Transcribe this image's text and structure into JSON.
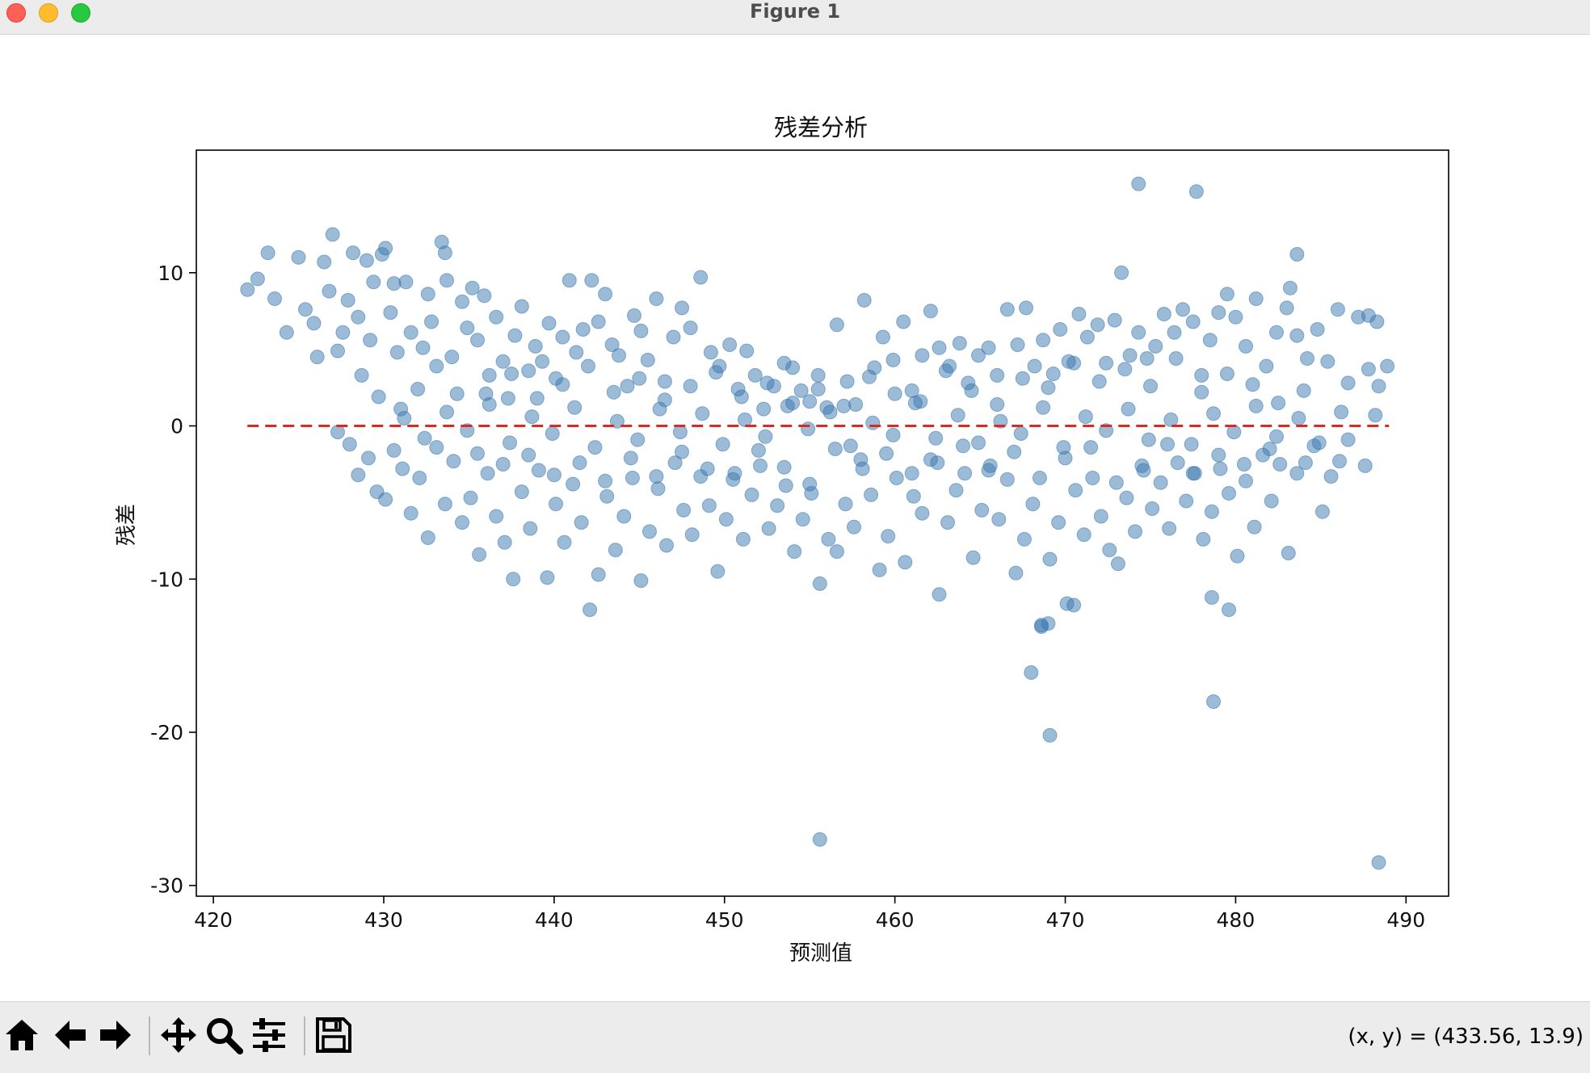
{
  "window": {
    "title": "Figure 1"
  },
  "toolbar": {
    "buttons": [
      {
        "name": "home-button",
        "icon": "home-icon"
      },
      {
        "name": "back-button",
        "icon": "arrow-left-icon"
      },
      {
        "name": "forward-button",
        "icon": "arrow-right-icon"
      },
      {
        "name": "pan-button",
        "icon": "move-icon"
      },
      {
        "name": "zoom-button",
        "icon": "magnifier-icon"
      },
      {
        "name": "configure-subplots-button",
        "icon": "sliders-icon"
      },
      {
        "name": "save-button",
        "icon": "floppy-disk-icon"
      }
    ],
    "coordinates": "(x, y) = (433.56, 13.9)"
  },
  "chart_data": {
    "type": "scatter",
    "title": "残差分析",
    "xlabel": "预测值",
    "ylabel": "残差",
    "xlim": [
      419,
      492.5
    ],
    "ylim": [
      -30.7,
      18
    ],
    "xticks": [
      420,
      430,
      440,
      450,
      460,
      470,
      480,
      490
    ],
    "yticks": [
      -30,
      -20,
      -10,
      0,
      10
    ],
    "grid": false,
    "colors": {
      "points": "#3a78b0",
      "reference_line": "#e0281e"
    },
    "reference_line": {
      "y": 0,
      "x": [
        422,
        489
      ],
      "style": "dashed"
    },
    "points": [
      [
        422,
        8.9
      ],
      [
        422.6,
        9.6
      ],
      [
        423.2,
        11.3
      ],
      [
        423.6,
        8.3
      ],
      [
        424.3,
        6.1
      ],
      [
        425,
        11
      ],
      [
        425.4,
        7.6
      ],
      [
        425.9,
        6.7
      ],
      [
        426.1,
        4.5
      ],
      [
        426.5,
        10.7
      ],
      [
        426.8,
        8.8
      ],
      [
        427,
        12.5
      ],
      [
        427.3,
        4.9
      ],
      [
        427.6,
        6.1
      ],
      [
        427.9,
        8.2
      ],
      [
        428.2,
        11.3
      ],
      [
        428.5,
        7.1
      ],
      [
        428.7,
        3.3
      ],
      [
        429,
        10.8
      ],
      [
        429.2,
        5.6
      ],
      [
        429.4,
        9.4
      ],
      [
        429.7,
        1.9
      ],
      [
        429.9,
        11.2
      ],
      [
        430.1,
        11.6
      ],
      [
        430.4,
        7.4
      ],
      [
        430.6,
        9.3
      ],
      [
        430.8,
        4.8
      ],
      [
        431,
        1.1
      ],
      [
        431.3,
        9.4
      ],
      [
        431.6,
        6.1
      ],
      [
        432,
        2.4
      ],
      [
        432.3,
        5.1
      ],
      [
        432.6,
        8.6
      ],
      [
        432.8,
        6.8
      ],
      [
        433.1,
        3.9
      ],
      [
        433.4,
        12
      ],
      [
        433.6,
        11.3
      ],
      [
        433.7,
        9.5
      ],
      [
        434,
        4.5
      ],
      [
        434.3,
        2.1
      ],
      [
        434.6,
        8.1
      ],
      [
        434.9,
        6.4
      ],
      [
        435.2,
        9
      ],
      [
        435.5,
        5.6
      ],
      [
        435.9,
        8.5
      ],
      [
        436.2,
        3.3
      ],
      [
        436.6,
        7.1
      ],
      [
        437,
        4.2
      ],
      [
        437.3,
        1.8
      ],
      [
        437.7,
        5.9
      ],
      [
        438.1,
        7.8
      ],
      [
        438.5,
        3.6
      ],
      [
        438.9,
        5.2
      ],
      [
        439.3,
        4.2
      ],
      [
        439.7,
        6.7
      ],
      [
        440.1,
        3.1
      ],
      [
        440.5,
        5.8
      ],
      [
        440.9,
        9.5
      ],
      [
        441.3,
        4.8
      ],
      [
        441.7,
        6.3
      ],
      [
        442.2,
        9.5
      ],
      [
        442.6,
        6.8
      ],
      [
        443,
        8.6
      ],
      [
        443.4,
        5.3
      ],
      [
        443.8,
        4.6
      ],
      [
        444.3,
        2.6
      ],
      [
        444.7,
        7.2
      ],
      [
        445.1,
        6.2
      ],
      [
        445.5,
        4.3
      ],
      [
        446,
        8.3
      ],
      [
        446.5,
        2.9
      ],
      [
        447,
        5.8
      ],
      [
        447.5,
        7.7
      ],
      [
        448,
        6.4
      ],
      [
        448.6,
        9.7
      ],
      [
        449.2,
        4.8
      ],
      [
        449.7,
        3.9
      ],
      [
        450.3,
        5.3
      ],
      [
        450.8,
        2.4
      ],
      [
        451.3,
        4.9
      ],
      [
        451.8,
        3.3
      ],
      [
        452.3,
        1.1
      ],
      [
        452.9,
        2.6
      ],
      [
        453.5,
        4.1
      ],
      [
        454,
        3.8
      ],
      [
        454.5,
        2.3
      ],
      [
        455,
        1.6
      ],
      [
        455.5,
        3.3
      ],
      [
        456,
        1.2
      ],
      [
        456.6,
        6.6
      ],
      [
        457.2,
        2.9
      ],
      [
        457.7,
        1.4
      ],
      [
        458.2,
        8.2
      ],
      [
        458.8,
        3.8
      ],
      [
        459.3,
        5.8
      ],
      [
        459.9,
        4.3
      ],
      [
        460.5,
        6.8
      ],
      [
        461,
        2.3
      ],
      [
        461.6,
        4.6
      ],
      [
        462.1,
        7.5
      ],
      [
        462.6,
        5.1
      ],
      [
        463.2,
        3.9
      ],
      [
        463.8,
        5.4
      ],
      [
        464.3,
        2.8
      ],
      [
        464.9,
        4.6
      ],
      [
        465.5,
        5.1
      ],
      [
        466,
        3.3
      ],
      [
        466.6,
        7.6
      ],
      [
        467.2,
        5.3
      ],
      [
        467.7,
        7.7
      ],
      [
        468.2,
        3.9
      ],
      [
        468.7,
        5.6
      ],
      [
        469.3,
        3.4
      ],
      [
        469.7,
        6.3
      ],
      [
        470.2,
        4.2
      ],
      [
        470.8,
        7.3
      ],
      [
        471.3,
        5.8
      ],
      [
        471.9,
        6.6
      ],
      [
        472.4,
        4.1
      ],
      [
        472.9,
        6.9
      ],
      [
        473.3,
        10
      ],
      [
        473.8,
        4.6
      ],
      [
        474.3,
        6.1
      ],
      [
        474.8,
        4.4
      ],
      [
        475.3,
        5.2
      ],
      [
        475.8,
        7.3
      ],
      [
        476.4,
        6.1
      ],
      [
        476.9,
        7.6
      ],
      [
        477.5,
        6.8
      ],
      [
        478,
        3.3
      ],
      [
        478.5,
        5.6
      ],
      [
        479,
        7.4
      ],
      [
        479.5,
        8.6
      ],
      [
        480,
        7.1
      ],
      [
        480.6,
        5.2
      ],
      [
        481.2,
        8.3
      ],
      [
        481.8,
        3.9
      ],
      [
        482.4,
        6.1
      ],
      [
        483,
        7.7
      ],
      [
        483.6,
        5.9
      ],
      [
        484.2,
        4.4
      ],
      [
        484.8,
        6.3
      ],
      [
        485.4,
        4.2
      ],
      [
        486,
        7.6
      ],
      [
        486.6,
        2.8
      ],
      [
        487.2,
        7.1
      ],
      [
        487.8,
        3.7
      ],
      [
        488.4,
        2.6
      ],
      [
        488.9,
        3.9
      ],
      [
        427.3,
        -0.4
      ],
      [
        428,
        -1.2
      ],
      [
        428.5,
        -3.2
      ],
      [
        429.1,
        -2.1
      ],
      [
        429.6,
        -4.3
      ],
      [
        430.1,
        -4.8
      ],
      [
        430.6,
        -1.6
      ],
      [
        431.1,
        -2.8
      ],
      [
        431.6,
        -5.7
      ],
      [
        432.1,
        -3.4
      ],
      [
        432.6,
        -7.3
      ],
      [
        433.1,
        -1.4
      ],
      [
        433.6,
        -5.1
      ],
      [
        434.1,
        -2.3
      ],
      [
        434.6,
        -6.3
      ],
      [
        435.1,
        -4.7
      ],
      [
        435.6,
        -8.4
      ],
      [
        436.1,
        -3.1
      ],
      [
        436.6,
        -5.9
      ],
      [
        437.1,
        -7.6
      ],
      [
        437.6,
        -10
      ],
      [
        438.1,
        -4.3
      ],
      [
        438.6,
        -6.7
      ],
      [
        439.1,
        -2.9
      ],
      [
        439.6,
        -9.9
      ],
      [
        440.1,
        -5.1
      ],
      [
        440.6,
        -7.6
      ],
      [
        441.1,
        -3.8
      ],
      [
        441.6,
        -6.3
      ],
      [
        442.1,
        -12
      ],
      [
        442.6,
        -9.7
      ],
      [
        443.1,
        -4.6
      ],
      [
        443.6,
        -8.1
      ],
      [
        444.1,
        -5.9
      ],
      [
        444.6,
        -3.4
      ],
      [
        445.1,
        -10.1
      ],
      [
        445.6,
        -6.9
      ],
      [
        446.1,
        -4.1
      ],
      [
        446.6,
        -7.8
      ],
      [
        447.1,
        -2.4
      ],
      [
        447.6,
        -5.5
      ],
      [
        448.1,
        -7.1
      ],
      [
        448.6,
        -3.3
      ],
      [
        449.1,
        -5.2
      ],
      [
        449.6,
        -9.5
      ],
      [
        450.1,
        -6.1
      ],
      [
        450.6,
        -3.1
      ],
      [
        451.1,
        -7.4
      ],
      [
        451.6,
        -4.5
      ],
      [
        452.1,
        -2.6
      ],
      [
        452.6,
        -6.7
      ],
      [
        453.1,
        -5.2
      ],
      [
        453.6,
        -3.9
      ],
      [
        454.1,
        -8.2
      ],
      [
        454.6,
        -6.1
      ],
      [
        455.1,
        -4.4
      ],
      [
        455.6,
        -10.3
      ],
      [
        456.1,
        -7.4
      ],
      [
        456.6,
        -8.2
      ],
      [
        457.1,
        -5.1
      ],
      [
        457.6,
        -6.6
      ],
      [
        458.1,
        -2.8
      ],
      [
        458.6,
        -4.5
      ],
      [
        459.1,
        -9.4
      ],
      [
        459.6,
        -7.2
      ],
      [
        460.1,
        -3.4
      ],
      [
        460.6,
        -8.9
      ],
      [
        461.1,
        -4.6
      ],
      [
        461.6,
        -5.7
      ],
      [
        462.1,
        -2.2
      ],
      [
        462.6,
        -11
      ],
      [
        463.1,
        -6.3
      ],
      [
        463.6,
        -4.2
      ],
      [
        464.1,
        -3.1
      ],
      [
        464.6,
        -8.6
      ],
      [
        465.1,
        -5.5
      ],
      [
        465.6,
        -2.6
      ],
      [
        466.1,
        -6.1
      ],
      [
        466.6,
        -3.5
      ],
      [
        467.1,
        -9.6
      ],
      [
        467.6,
        -7.4
      ],
      [
        468.1,
        -5.1
      ],
      [
        468.6,
        -13.1
      ],
      [
        469.1,
        -8.7
      ],
      [
        469.6,
        -6.3
      ],
      [
        470.1,
        -11.6
      ],
      [
        470.6,
        -4.2
      ],
      [
        471.1,
        -7.1
      ],
      [
        471.6,
        -3.4
      ],
      [
        472.1,
        -5.9
      ],
      [
        472.6,
        -8.1
      ],
      [
        473.1,
        -9
      ],
      [
        473.6,
        -4.7
      ],
      [
        474.1,
        -6.9
      ],
      [
        474.6,
        -2.9
      ],
      [
        475.1,
        -5.4
      ],
      [
        475.6,
        -3.7
      ],
      [
        476.1,
        -6.7
      ],
      [
        476.6,
        -2.4
      ],
      [
        477.1,
        -4.9
      ],
      [
        477.6,
        -3.1
      ],
      [
        478.1,
        -7.4
      ],
      [
        478.6,
        -5.6
      ],
      [
        479.1,
        -2.8
      ],
      [
        479.6,
        -4.4
      ],
      [
        480.1,
        -8.5
      ],
      [
        480.6,
        -3.6
      ],
      [
        481.1,
        -6.6
      ],
      [
        481.6,
        -1.9
      ],
      [
        482.1,
        -4.9
      ],
      [
        482.6,
        -2.5
      ],
      [
        483.1,
        -8.3
      ],
      [
        483.6,
        -3.1
      ],
      [
        484.1,
        -2.4
      ],
      [
        484.6,
        -1.3
      ],
      [
        485.1,
        -5.6
      ],
      [
        485.6,
        -3.3
      ],
      [
        486.1,
        -2.3
      ],
      [
        486.6,
        -0.9
      ],
      [
        487.6,
        -2.6
      ],
      [
        431.2,
        0.5
      ],
      [
        432.4,
        -0.8
      ],
      [
        433.7,
        0.9
      ],
      [
        434.9,
        -0.3
      ],
      [
        436.2,
        1.4
      ],
      [
        437.4,
        -1.1
      ],
      [
        438.7,
        0.6
      ],
      [
        439.9,
        -0.5
      ],
      [
        441.2,
        1.2
      ],
      [
        442.4,
        -1.4
      ],
      [
        443.7,
        0.3
      ],
      [
        444.9,
        -0.9
      ],
      [
        446.2,
        1.1
      ],
      [
        447.4,
        -0.4
      ],
      [
        448.7,
        0.8
      ],
      [
        449.9,
        -1.2
      ],
      [
        451.2,
        0.4
      ],
      [
        452.4,
        -0.7
      ],
      [
        453.7,
        1.3
      ],
      [
        454.9,
        -0.2
      ],
      [
        456.2,
        0.9
      ],
      [
        457.4,
        -1.3
      ],
      [
        458.7,
        0.2
      ],
      [
        459.9,
        -0.6
      ],
      [
        461.2,
        1.5
      ],
      [
        462.4,
        -0.8
      ],
      [
        463.7,
        0.7
      ],
      [
        464.9,
        -1.1
      ],
      [
        466.2,
        0.3
      ],
      [
        467.4,
        -0.5
      ],
      [
        468.7,
        1.2
      ],
      [
        469.9,
        -1.4
      ],
      [
        471.2,
        0.6
      ],
      [
        472.4,
        -0.3
      ],
      [
        473.7,
        1.1
      ],
      [
        474.9,
        -0.9
      ],
      [
        476.2,
        0.4
      ],
      [
        477.4,
        -1.2
      ],
      [
        478.7,
        0.8
      ],
      [
        479.9,
        -0.4
      ],
      [
        481.2,
        1.3
      ],
      [
        482.4,
        -0.7
      ],
      [
        483.7,
        0.5
      ],
      [
        484.9,
        -1.1
      ],
      [
        486.2,
        0.9
      ],
      [
        488.2,
        0.7
      ],
      [
        435.5,
        -1.8
      ],
      [
        437,
        -2.5
      ],
      [
        438.5,
        -1.9
      ],
      [
        440,
        -3.2
      ],
      [
        441.5,
        -2.4
      ],
      [
        443,
        -3.6
      ],
      [
        444.5,
        -2.1
      ],
      [
        446,
        -3.3
      ],
      [
        447.5,
        -1.7
      ],
      [
        449,
        -2.8
      ],
      [
        450.5,
        -3.5
      ],
      [
        452,
        -1.6
      ],
      [
        453.5,
        -2.7
      ],
      [
        455,
        -3.8
      ],
      [
        456.5,
        -1.5
      ],
      [
        458,
        -2.2
      ],
      [
        459.5,
        -1.8
      ],
      [
        461,
        -3.1
      ],
      [
        462.5,
        -2.4
      ],
      [
        464,
        -1.3
      ],
      [
        465.5,
        -2.9
      ],
      [
        467,
        -1.7
      ],
      [
        468.5,
        -3.4
      ],
      [
        470,
        -2.1
      ],
      [
        471.5,
        -1.4
      ],
      [
        473,
        -3.7
      ],
      [
        474.5,
        -2.6
      ],
      [
        476,
        -1.2
      ],
      [
        477.5,
        -3.1
      ],
      [
        479,
        -1.9
      ],
      [
        480.5,
        -2.5
      ],
      [
        482,
        -1.5
      ],
      [
        436,
        2.1
      ],
      [
        437.5,
        3.4
      ],
      [
        439,
        1.8
      ],
      [
        440.5,
        2.7
      ],
      [
        442,
        3.9
      ],
      [
        443.5,
        2.2
      ],
      [
        445,
        3.1
      ],
      [
        446.5,
        1.7
      ],
      [
        448,
        2.6
      ],
      [
        449.5,
        3.5
      ],
      [
        451,
        1.9
      ],
      [
        452.5,
        2.8
      ],
      [
        454,
        1.5
      ],
      [
        455.5,
        2.4
      ],
      [
        457,
        1.3
      ],
      [
        458.5,
        3.2
      ],
      [
        460,
        2.1
      ],
      [
        461.5,
        1.6
      ],
      [
        463,
        3.6
      ],
      [
        464.5,
        2.3
      ],
      [
        466,
        1.4
      ],
      [
        467.5,
        3.1
      ],
      [
        469,
        2.5
      ],
      [
        470.5,
        4.1
      ],
      [
        472,
        2.9
      ],
      [
        473.5,
        3.7
      ],
      [
        475,
        2.6
      ],
      [
        476.5,
        4.4
      ],
      [
        478,
        2.2
      ],
      [
        479.5,
        3.4
      ],
      [
        481,
        2.7
      ],
      [
        482.5,
        1.5
      ],
      [
        484,
        2.3
      ],
      [
        474.3,
        15.8
      ],
      [
        477.7,
        15.3
      ],
      [
        483.6,
        11.2
      ],
      [
        483.2,
        9
      ],
      [
        487.8,
        7.2
      ],
      [
        488.3,
        6.8
      ],
      [
        468.6,
        -13
      ],
      [
        469,
        -12.9
      ],
      [
        470.5,
        -11.7
      ],
      [
        478.6,
        -11.2
      ],
      [
        479.6,
        -12
      ],
      [
        468,
        -16.1
      ],
      [
        478.7,
        -18
      ],
      [
        469.1,
        -20.2
      ],
      [
        455.6,
        -27
      ],
      [
        488.4,
        -28.5
      ]
    ]
  }
}
